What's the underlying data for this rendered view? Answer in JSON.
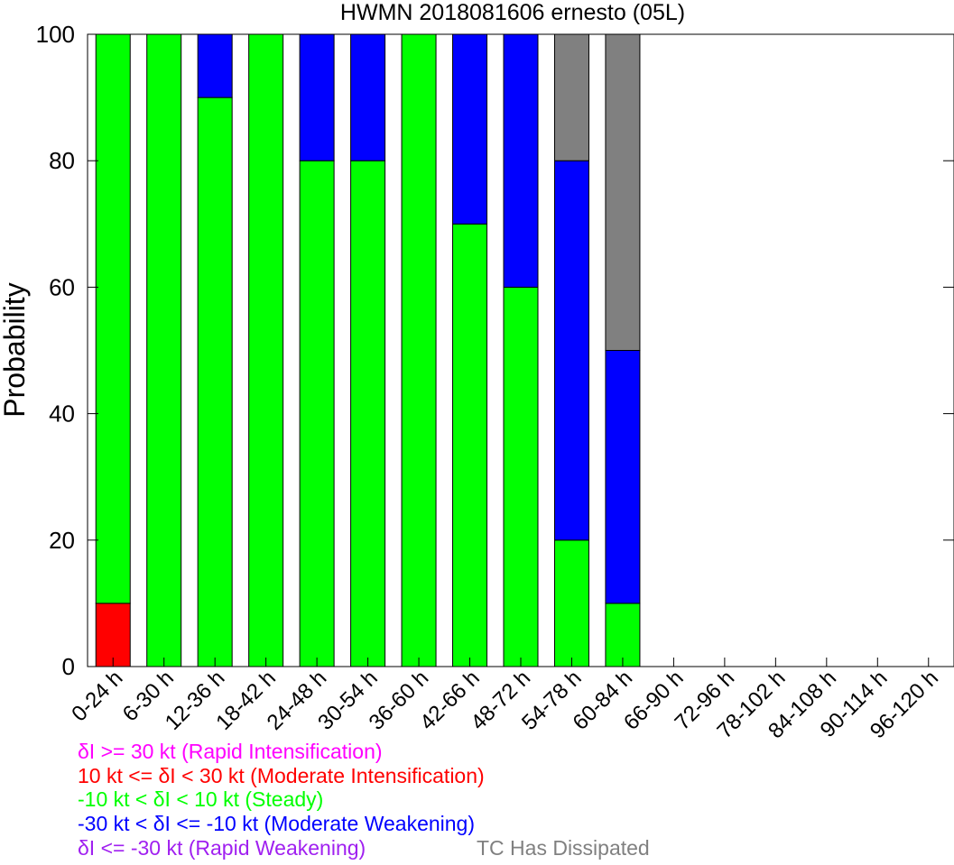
{
  "chart_data": {
    "type": "bar",
    "stacked": true,
    "title": "HWMN 2018081606 ernesto (05L)",
    "ylabel": "Probability",
    "xlabel": "",
    "ylim": [
      0,
      100
    ],
    "yticks": [
      0,
      20,
      40,
      60,
      80,
      100
    ],
    "categories": [
      "0-24 h",
      "6-30 h",
      "12-36 h",
      "18-42 h",
      "24-48 h",
      "30-54 h",
      "36-60 h",
      "42-66 h",
      "48-72 h",
      "54-78 h",
      "60-84 h",
      "66-90 h",
      "72-96 h",
      "78-102 h",
      "84-108 h",
      "90-114 h",
      "96-120 h"
    ],
    "series": [
      {
        "name": "δI >= 30 kt (Rapid Intensification)",
        "color": "#ff00ff",
        "values": [
          0,
          0,
          0,
          0,
          0,
          0,
          0,
          0,
          0,
          0,
          0,
          0,
          0,
          0,
          0,
          0,
          0
        ]
      },
      {
        "name": "10 kt <= δI < 30 kt (Moderate Intensification)",
        "color": "#ff0000",
        "values": [
          10,
          0,
          0,
          0,
          0,
          0,
          0,
          0,
          0,
          0,
          0,
          0,
          0,
          0,
          0,
          0,
          0
        ]
      },
      {
        "name": "-10 kt < δI < 10 kt (Steady)",
        "color": "#00ff00",
        "values": [
          90,
          100,
          90,
          100,
          80,
          80,
          100,
          70,
          60,
          20,
          10,
          0,
          0,
          0,
          0,
          0,
          0
        ]
      },
      {
        "name": "-30 kt < δI <= -10 kt (Moderate Weakening)",
        "color": "#0000ff",
        "values": [
          0,
          0,
          10,
          0,
          20,
          20,
          0,
          30,
          40,
          60,
          40,
          0,
          0,
          0,
          0,
          0,
          0
        ]
      },
      {
        "name": "δI <= -30 kt (Rapid Weakening)",
        "color": "#a020f0",
        "values": [
          0,
          0,
          0,
          0,
          0,
          0,
          0,
          0,
          0,
          0,
          0,
          0,
          0,
          0,
          0,
          0,
          0
        ]
      },
      {
        "name": "TC Has Dissipated",
        "color": "#808080",
        "values": [
          0,
          0,
          0,
          0,
          0,
          0,
          0,
          0,
          0,
          20,
          50,
          0,
          0,
          0,
          0,
          0,
          0
        ]
      }
    ],
    "legend_placement": "bottom-left",
    "grid": false
  }
}
